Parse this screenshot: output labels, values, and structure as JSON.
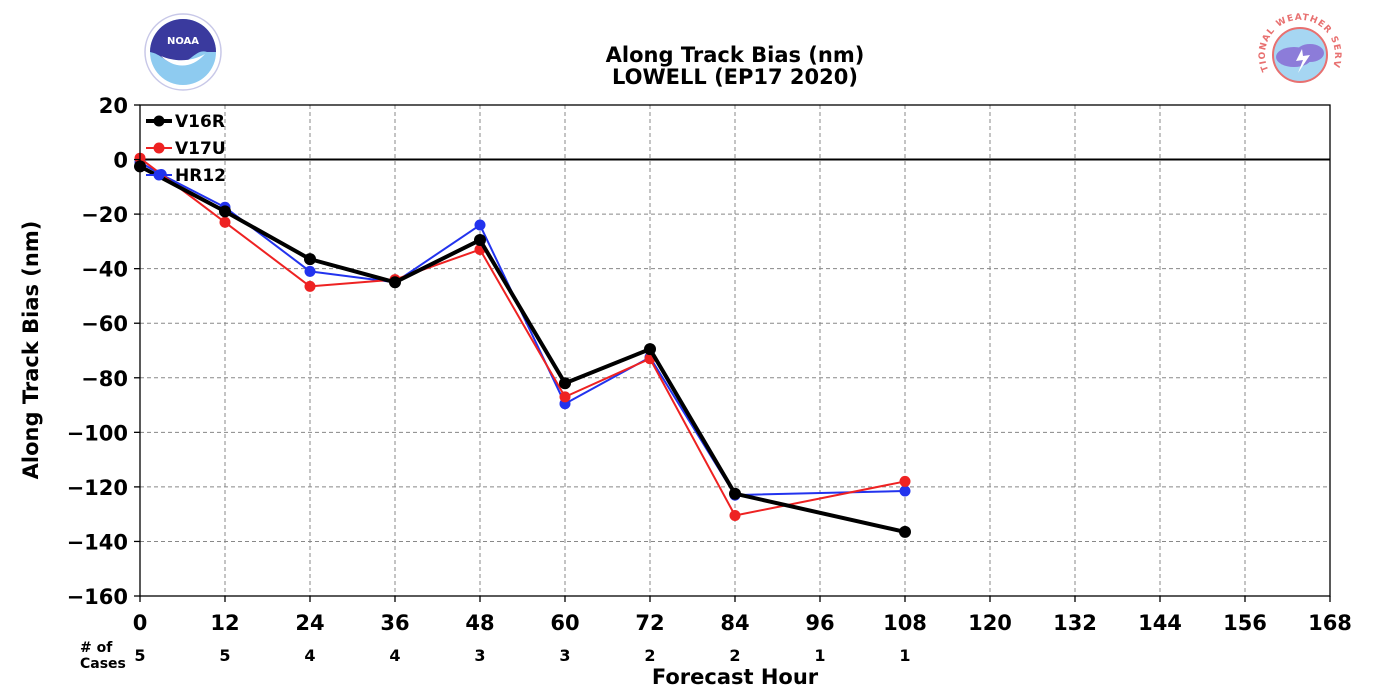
{
  "chart_data": {
    "type": "line",
    "title": "Along Track Bias (nm)",
    "subtitle": "LOWELL (EP17 2020)",
    "xlabel": "Forecast Hour",
    "ylabel": "Along Track Bias (nm)",
    "xlim": [
      0,
      168
    ],
    "ylim": [
      -160,
      20
    ],
    "xticks": [
      0,
      12,
      24,
      36,
      48,
      60,
      72,
      84,
      96,
      108,
      120,
      132,
      144,
      156,
      168
    ],
    "yticks": [
      20,
      0,
      -20,
      -40,
      -60,
      -80,
      -100,
      -120,
      -140,
      -160
    ],
    "ytick_labels": [
      "20",
      "0",
      "−20",
      "−40",
      "−60",
      "−80",
      "−100",
      "−120",
      "−140",
      "−160"
    ],
    "grid": true,
    "zero_line": true,
    "legend_position": "top-left",
    "cases_label_line1": "# of",
    "cases_label_line2": "Cases",
    "cases": [
      {
        "x": 0,
        "n": "5"
      },
      {
        "x": 12,
        "n": "5"
      },
      {
        "x": 24,
        "n": "4"
      },
      {
        "x": 36,
        "n": "4"
      },
      {
        "x": 48,
        "n": "3"
      },
      {
        "x": 60,
        "n": "3"
      },
      {
        "x": 72,
        "n": "2"
      },
      {
        "x": 84,
        "n": "2"
      },
      {
        "x": 96,
        "n": "1"
      },
      {
        "x": 108,
        "n": "1"
      }
    ],
    "series": [
      {
        "name": "HR12",
        "color": "#2233ee",
        "points": [
          [
            0,
            -1
          ],
          [
            3,
            -5.5
          ],
          [
            12,
            -17.5
          ],
          [
            24,
            -41
          ],
          [
            36,
            -45
          ],
          [
            48,
            -24
          ],
          [
            60,
            -89.5
          ],
          [
            72,
            -72.5
          ],
          [
            84,
            -123
          ],
          [
            108,
            -121.5
          ]
        ]
      },
      {
        "name": "V17U",
        "color": "#ee2222",
        "points": [
          [
            0,
            0.5
          ],
          [
            12,
            -23
          ],
          [
            24,
            -46.5
          ],
          [
            36,
            -44
          ],
          [
            48,
            -33
          ],
          [
            60,
            -87
          ],
          [
            72,
            -73
          ],
          [
            84,
            -130.5
          ],
          [
            108,
            -118
          ]
        ]
      },
      {
        "name": "V16R",
        "color": "#000000",
        "points": [
          [
            0,
            -2.5
          ],
          [
            12,
            -19
          ],
          [
            24,
            -36.5
          ],
          [
            36,
            -45
          ],
          [
            48,
            -29.5
          ],
          [
            60,
            -82
          ],
          [
            72,
            -69.5
          ],
          [
            84,
            -122.5
          ],
          [
            108,
            -136.5
          ]
        ]
      }
    ],
    "legend_order": [
      "V16R",
      "V17U",
      "HR12"
    ]
  },
  "logos": {
    "noaa": {
      "name": "NOAA",
      "colors": {
        "dark": "#3a3a9e",
        "light": "#8ecbf0"
      }
    },
    "nws": {
      "name": "NATIONAL WEATHER SERVICE",
      "colors": {
        "ring": "#e87070",
        "cloud": "#8c7cd9",
        "sky": "#a6d6f2"
      }
    }
  }
}
